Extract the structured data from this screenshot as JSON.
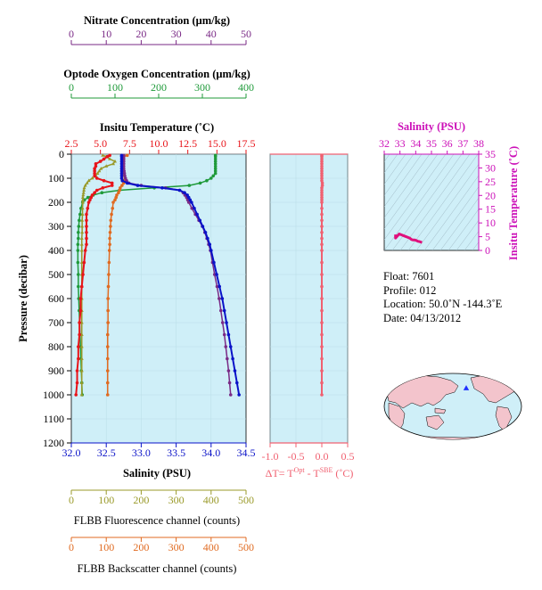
{
  "colors": {
    "nitrate": "#7a2a86",
    "oxygen": "#1f9a3a",
    "temperature": "#e8141a",
    "salinity": "#0a12c8",
    "fluorescence": "#9a9a2a",
    "backscatter": "#e06a20",
    "delta_t": "#f06070",
    "ts_axis": "#cc10b8",
    "panel_bg": "#cfeff8"
  },
  "main_panel": {
    "ylabel": "Pressure (decibar)",
    "yticks": [
      "0",
      "100",
      "200",
      "300",
      "400",
      "500",
      "600",
      "700",
      "800",
      "900",
      "1000",
      "1100",
      "1200"
    ],
    "ylim": [
      0,
      1200
    ],
    "axes": {
      "nitrate": {
        "label": "Nitrate Concentration (μm/kg)",
        "ticks": [
          "0",
          "10",
          "20",
          "30",
          "40",
          "50"
        ],
        "range": [
          0,
          50
        ]
      },
      "oxygen": {
        "label": "Optode Oxygen Concentration (μm/kg)",
        "ticks": [
          "0",
          "100",
          "200",
          "300",
          "400"
        ],
        "range": [
          0,
          400
        ]
      },
      "temperature": {
        "label": "Insitu Temperature (˚C)",
        "ticks": [
          "2.5",
          "5.0",
          "7.5",
          "10.0",
          "12.5",
          "15.0",
          "17.5"
        ],
        "range": [
          2.5,
          17.5
        ]
      },
      "salinity": {
        "label": "Salinity (PSU)",
        "ticks": [
          "32.0",
          "32.5",
          "33.0",
          "33.5",
          "34.0",
          "34.5"
        ],
        "range": [
          32.0,
          34.5
        ]
      },
      "fluorescence": {
        "label": "FLBB Fluorescence channel (counts)",
        "ticks": [
          "0",
          "100",
          "200",
          "300",
          "400",
          "500"
        ],
        "range": [
          0,
          500
        ]
      },
      "backscatter": {
        "label": "FLBB Backscatter channel (counts)",
        "ticks": [
          "0",
          "100",
          "200",
          "300",
          "400",
          "500"
        ],
        "range": [
          0,
          500
        ]
      }
    }
  },
  "delta_panel": {
    "label_prefix": "ΔT= T",
    "label_sup1": "Opt",
    "label_mid": " - T",
    "label_sup2": "SBE",
    "label_suffix": " (˚C)",
    "ticks": [
      "-1.0",
      "-0.5",
      "0.0",
      "0.5"
    ],
    "range": [
      -1.0,
      0.5
    ]
  },
  "ts_panel": {
    "title": "Salinity (PSU)",
    "xticks": [
      "32",
      "33",
      "34",
      "35",
      "36",
      "37",
      "38"
    ],
    "xrange": [
      32,
      38
    ],
    "ylabel": "Insitu Temperature (˚C)",
    "yticks": [
      "0",
      "5",
      "10",
      "15",
      "20",
      "25",
      "30",
      "35"
    ],
    "yrange": [
      0,
      35
    ]
  },
  "info": {
    "float": "Float:  7601",
    "profile": "Profile:  012",
    "location": "Location:  50.0˚N  -144.3˚E",
    "date": "Date:  04/13/2012"
  },
  "chart_data": {
    "type": "line",
    "ylabel": "Pressure (decibar)",
    "ylim": [
      0,
      1200
    ],
    "pressure": [
      5,
      10,
      20,
      30,
      40,
      50,
      60,
      70,
      80,
      90,
      100,
      110,
      120,
      130,
      140,
      150,
      160,
      170,
      180,
      190,
      200,
      225,
      250,
      275,
      300,
      325,
      350,
      375,
      400,
      450,
      500,
      550,
      600,
      650,
      700,
      750,
      800,
      850,
      900,
      950,
      1000
    ],
    "series": [
      {
        "name": "Salinity (PSU)",
        "values": [
          32.72,
          32.72,
          32.72,
          32.72,
          32.72,
          32.72,
          32.72,
          32.72,
          32.72,
          32.72,
          32.72,
          32.73,
          32.8,
          32.95,
          33.3,
          33.55,
          33.62,
          33.66,
          33.68,
          33.7,
          33.72,
          33.76,
          33.8,
          33.84,
          33.88,
          33.92,
          33.95,
          33.98,
          34.0,
          34.04,
          34.08,
          34.12,
          34.16,
          34.19,
          34.22,
          34.25,
          34.28,
          34.31,
          34.34,
          34.37,
          34.4
        ]
      },
      {
        "name": "Insitu Temperature (˚C)",
        "values": [
          5.8,
          5.6,
          5.3,
          5.0,
          4.6,
          4.6,
          4.5,
          4.5,
          4.5,
          4.5,
          4.7,
          5.3,
          6.0,
          6.0,
          5.2,
          4.7,
          4.5,
          4.3,
          4.2,
          4.1,
          4.0,
          3.9,
          3.8,
          3.8,
          3.8,
          3.8,
          3.8,
          3.8,
          3.7,
          3.6,
          3.5,
          3.4,
          3.3,
          3.3,
          3.2,
          3.2,
          3.1,
          3.1,
          3.0,
          3.0,
          2.9
        ]
      },
      {
        "name": "Nitrate Concentration (μm/kg)",
        "values": [
          15.0,
          15.0,
          15.0,
          15.0,
          15.0,
          15.0,
          15.0,
          15.1,
          15.2,
          15.3,
          15.5,
          15.8,
          16.5,
          20.0,
          27.0,
          31.0,
          32.0,
          32.5,
          33.0,
          33.3,
          33.6,
          34.5,
          35.5,
          36.5,
          37.5,
          38.2,
          38.8,
          39.3,
          39.8,
          40.4,
          41.0,
          41.7,
          42.3,
          42.8,
          43.3,
          43.8,
          44.2,
          44.6,
          45.0,
          45.3,
          45.6
        ]
      },
      {
        "name": "Optode Oxygen Concentration (μm/kg)",
        "values": [
          330,
          330,
          330,
          330,
          330,
          330,
          330,
          330,
          330,
          325,
          320,
          310,
          295,
          270,
          190,
          110,
          70,
          50,
          38,
          30,
          26,
          22,
          20,
          18,
          17,
          16,
          16,
          15,
          15,
          15,
          16,
          16,
          17,
          18,
          19,
          20,
          21,
          22,
          23,
          24,
          25
        ]
      },
      {
        "name": "FLBB Fluorescence channel (counts)",
        "values": [
          90,
          100,
          110,
          125,
          120,
          100,
          85,
          80,
          75,
          70,
          60,
          50,
          45,
          40,
          37,
          36,
          35,
          34,
          33,
          33,
          33,
          32,
          32,
          31,
          31,
          31,
          30,
          30,
          30,
          30,
          30,
          30,
          30,
          30,
          30,
          30,
          30,
          30,
          30,
          30,
          30
        ]
      },
      {
        "name": "FLBB Backscatter channel (counts)",
        "values": [
          160,
          150,
          150,
          145,
          145,
          145,
          145,
          145,
          145,
          145,
          145,
          150,
          150,
          145,
          140,
          138,
          135,
          130,
          128,
          125,
          120,
          118,
          115,
          113,
          112,
          111,
          110,
          110,
          109,
          108,
          107,
          106,
          105,
          105,
          105,
          104,
          104,
          104,
          104,
          104,
          104
        ]
      }
    ],
    "delta_t": {
      "label": "ΔT= T Opt - T SBE (˚C)",
      "values": [
        0.0,
        0.0,
        0.0,
        0.0,
        0.0,
        0.0,
        0.0,
        0.0,
        0.0,
        0.0,
        0.0,
        0.0,
        0.01,
        0.01,
        0.0,
        0.0,
        0.0,
        0.0,
        0.0,
        0.0,
        0.0,
        0.0,
        0.0,
        0.0,
        0.0,
        0.0,
        0.0,
        0.0,
        0.0,
        0.0,
        0.0,
        0.0,
        0.0,
        0.0,
        0.0,
        0.0,
        0.0,
        0.0,
        0.0,
        0.0,
        0.0
      ]
    },
    "ts_curve": {
      "salinity": [
        32.72,
        32.72,
        32.72,
        32.95,
        33.3,
        33.62,
        33.72,
        33.84,
        33.95,
        34.04,
        34.16,
        34.25,
        34.34,
        34.4
      ],
      "temperature": [
        5.8,
        5.0,
        4.5,
        6.0,
        5.2,
        4.5,
        4.0,
        3.8,
        3.8,
        3.6,
        3.3,
        3.2,
        3.0,
        2.9
      ]
    }
  }
}
